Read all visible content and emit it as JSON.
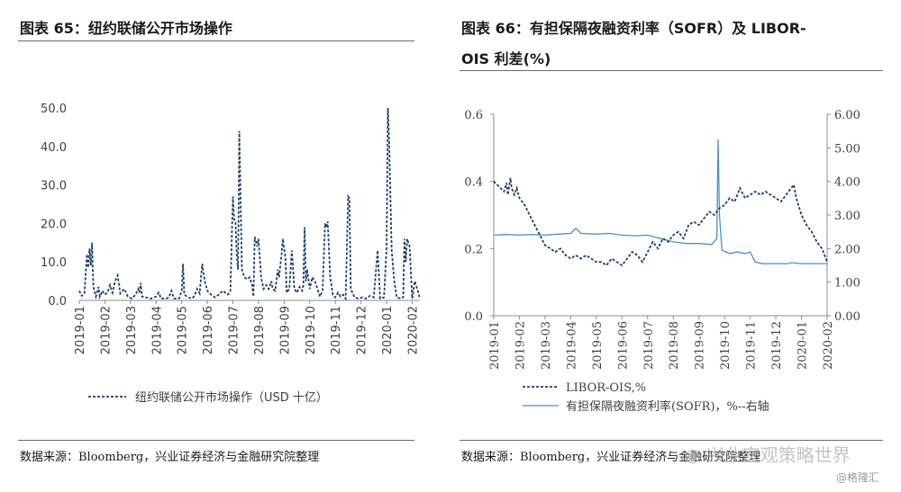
{
  "left_panel": {
    "title": "图表 65：纽约联储公开市场操作",
    "source": "数据来源：Bloomberg，兴业证券经济与金融研究院整理"
  },
  "right_panel": {
    "title_line1": "图表 66：有担保隔夜融资利率（SOFR）及 LIBOR-",
    "title_line2": "OIS 利差(%)",
    "source": "数据来源：Bloomberg，兴业证券经济与金融研究院整理"
  },
  "watermark": {
    "text": "兴业宏观策略世界",
    "credit": "@格隆汇"
  },
  "colors": {
    "dark_series": "#1f3f68",
    "light_series": "#4a90c4",
    "axis": "#8c8c8c"
  },
  "chart_data": [
    {
      "type": "line",
      "title": "图表 65：纽约联储公开市场操作",
      "xlabel": "",
      "ylabel": "",
      "y_ticks": [
        "0.0",
        "10.0",
        "20.0",
        "30.0",
        "40.0",
        "50.0"
      ],
      "x_ticks": [
        "2019-01",
        "2019-02",
        "2019-03",
        "2019-04",
        "2019-05",
        "2019-06",
        "2019-07",
        "2019-08",
        "2019-09",
        "2019-10",
        "2019-11",
        "2019-12",
        "2020-01",
        "2020-02"
      ],
      "ylim": [
        0,
        50
      ],
      "xlim": [
        0,
        13.3
      ],
      "grid": false,
      "legend_position": "bottom",
      "series": [
        {
          "name": "纽约联储公开市场操作（USD 十亿）",
          "style": "dashed",
          "points": [
            [
              0.0,
              2.5
            ],
            [
              0.1,
              1.2
            ],
            [
              0.2,
              1.8
            ],
            [
              0.3,
              12.0
            ],
            [
              0.35,
              8.5
            ],
            [
              0.4,
              13.5
            ],
            [
              0.45,
              9.0
            ],
            [
              0.5,
              15.0
            ],
            [
              0.55,
              3.5
            ],
            [
              0.65,
              1.0
            ],
            [
              0.75,
              3.5
            ],
            [
              0.8,
              1.0
            ],
            [
              0.9,
              2.5
            ],
            [
              1.0,
              1.5
            ],
            [
              1.1,
              2.0
            ],
            [
              1.2,
              4.0
            ],
            [
              1.3,
              2.0
            ],
            [
              1.4,
              5.0
            ],
            [
              1.5,
              6.5
            ],
            [
              1.6,
              1.8
            ],
            [
              1.75,
              3.0
            ],
            [
              1.9,
              1.0
            ],
            [
              2.05,
              0.5
            ],
            [
              2.2,
              1.5
            ],
            [
              2.3,
              3.0
            ],
            [
              2.35,
              2.0
            ],
            [
              2.4,
              4.5
            ],
            [
              2.45,
              1.0
            ],
            [
              2.6,
              0.8
            ],
            [
              2.8,
              0.5
            ],
            [
              3.0,
              1.0
            ],
            [
              3.1,
              2.0
            ],
            [
              3.2,
              0.5
            ],
            [
              3.4,
              0.5
            ],
            [
              3.5,
              0.8
            ],
            [
              3.6,
              2.5
            ],
            [
              3.7,
              0.5
            ],
            [
              3.9,
              0.5
            ],
            [
              4.0,
              2.5
            ],
            [
              4.05,
              9.5
            ],
            [
              4.1,
              1.5
            ],
            [
              4.25,
              0.8
            ],
            [
              4.4,
              0.5
            ],
            [
              4.5,
              1.2
            ],
            [
              4.6,
              3.0
            ],
            [
              4.7,
              1.8
            ],
            [
              4.8,
              9.5
            ],
            [
              4.9,
              5.0
            ],
            [
              5.0,
              2.5
            ],
            [
              5.15,
              1.5
            ],
            [
              5.3,
              0.8
            ],
            [
              5.45,
              1.5
            ],
            [
              5.6,
              2.5
            ],
            [
              5.7,
              2.0
            ],
            [
              5.8,
              1.5
            ],
            [
              5.9,
              2.5
            ],
            [
              6.0,
              27.0
            ],
            [
              6.05,
              21.0
            ],
            [
              6.1,
              20.5
            ],
            [
              6.15,
              12.0
            ],
            [
              6.2,
              8.0
            ],
            [
              6.25,
              44.0
            ],
            [
              6.3,
              25.0
            ],
            [
              6.35,
              8.0
            ],
            [
              6.45,
              6.0
            ],
            [
              6.55,
              5.5
            ],
            [
              6.65,
              6.0
            ],
            [
              6.75,
              4.0
            ],
            [
              6.8,
              1.0
            ],
            [
              6.85,
              16.5
            ],
            [
              6.95,
              14.0
            ],
            [
              7.0,
              16.0
            ],
            [
              7.1,
              6.0
            ],
            [
              7.2,
              3.0
            ],
            [
              7.3,
              4.0
            ],
            [
              7.4,
              3.0
            ],
            [
              7.5,
              5.0
            ],
            [
              7.55,
              3.0
            ],
            [
              7.65,
              2.5
            ],
            [
              7.75,
              8.0
            ],
            [
              7.8,
              6.0
            ],
            [
              7.9,
              12.0
            ],
            [
              7.95,
              16.0
            ],
            [
              8.05,
              11.0
            ],
            [
              8.1,
              2.0
            ],
            [
              8.2,
              3.0
            ],
            [
              8.3,
              13.0
            ],
            [
              8.4,
              3.0
            ],
            [
              8.5,
              2.0
            ],
            [
              8.6,
              3.5
            ],
            [
              8.7,
              2.5
            ],
            [
              8.75,
              4.0
            ],
            [
              8.8,
              19.0
            ],
            [
              8.85,
              5.0
            ],
            [
              8.9,
              8.0
            ],
            [
              9.0,
              3.0
            ],
            [
              9.1,
              6.0
            ],
            [
              9.2,
              5.0
            ],
            [
              9.3,
              3.0
            ],
            [
              9.4,
              1.0
            ],
            [
              9.5,
              2.5
            ],
            [
              9.6,
              20.0
            ],
            [
              9.65,
              19.0
            ],
            [
              9.7,
              20.5
            ],
            [
              9.8,
              6.0
            ],
            [
              9.9,
              1.5
            ],
            [
              10.0,
              0.8
            ],
            [
              10.1,
              2.0
            ],
            [
              10.2,
              1.0
            ],
            [
              10.3,
              1.5
            ],
            [
              10.4,
              0.5
            ],
            [
              10.5,
              27.0
            ],
            [
              10.55,
              26.5
            ],
            [
              10.6,
              3.0
            ],
            [
              10.75,
              0.8
            ],
            [
              10.9,
              0.5
            ],
            [
              11.05,
              0.8
            ],
            [
              11.2,
              0.5
            ],
            [
              11.35,
              1.2
            ],
            [
              11.5,
              0.8
            ],
            [
              11.65,
              13.0
            ],
            [
              11.75,
              0.5
            ],
            [
              11.9,
              0.8
            ],
            [
              12.0,
              14.0
            ],
            [
              12.05,
              50.0
            ],
            [
              12.1,
              41.0
            ],
            [
              12.2,
              13.0
            ],
            [
              12.3,
              5.0
            ],
            [
              12.4,
              0.8
            ],
            [
              12.55,
              0.5
            ],
            [
              12.65,
              0.8
            ],
            [
              12.7,
              16.0
            ],
            [
              12.75,
              10.0
            ],
            [
              12.8,
              16.0
            ],
            [
              12.9,
              14.0
            ],
            [
              13.0,
              0.5
            ],
            [
              13.1,
              5.0
            ],
            [
              13.2,
              3.0
            ],
            [
              13.3,
              0.5
            ]
          ]
        }
      ]
    },
    {
      "type": "line",
      "title": "图表 66：有担保隔夜融资利率（SOFR）及 LIBOR-OIS 利差(%)",
      "xlabel": "",
      "y_left_ticks": [
        "0.0",
        "0.2",
        "0.4",
        "0.6"
      ],
      "y_right_ticks": [
        "0.00",
        "1.00",
        "2.00",
        "3.00",
        "4.00",
        "5.00",
        "6.00"
      ],
      "ylim_left": [
        0,
        0.6
      ],
      "ylim_right": [
        0,
        6
      ],
      "x_ticks": [
        "2019-01",
        "2019-02",
        "2019-03",
        "2019-04",
        "2019-05",
        "2019-06",
        "2019-07",
        "2019-08",
        "2019-09",
        "2019-10",
        "2019-11",
        "2019-12",
        "2020-01",
        "2020-02"
      ],
      "xlim": [
        0,
        13
      ],
      "grid": false,
      "legend_position": "bottom",
      "series": [
        {
          "name": "LIBOR-OIS,%",
          "axis": "left",
          "style": "dashed",
          "points": [
            [
              0.0,
              0.4
            ],
            [
              0.2,
              0.385
            ],
            [
              0.4,
              0.37
            ],
            [
              0.5,
              0.395
            ],
            [
              0.55,
              0.36
            ],
            [
              0.65,
              0.41
            ],
            [
              0.7,
              0.38
            ],
            [
              0.8,
              0.36
            ],
            [
              0.9,
              0.38
            ],
            [
              1.0,
              0.35
            ],
            [
              1.2,
              0.33
            ],
            [
              1.4,
              0.3
            ],
            [
              1.6,
              0.27
            ],
            [
              1.8,
              0.24
            ],
            [
              2.0,
              0.21
            ],
            [
              2.2,
              0.2
            ],
            [
              2.4,
              0.19
            ],
            [
              2.6,
              0.2
            ],
            [
              2.8,
              0.18
            ],
            [
              3.0,
              0.17
            ],
            [
              3.2,
              0.18
            ],
            [
              3.4,
              0.17
            ],
            [
              3.6,
              0.18
            ],
            [
              3.8,
              0.17
            ],
            [
              4.0,
              0.16
            ],
            [
              4.2,
              0.16
            ],
            [
              4.4,
              0.15
            ],
            [
              4.6,
              0.17
            ],
            [
              4.8,
              0.16
            ],
            [
              5.0,
              0.15
            ],
            [
              5.2,
              0.17
            ],
            [
              5.4,
              0.19
            ],
            [
              5.6,
              0.18
            ],
            [
              5.8,
              0.16
            ],
            [
              6.0,
              0.19
            ],
            [
              6.2,
              0.22
            ],
            [
              6.4,
              0.2
            ],
            [
              6.6,
              0.23
            ],
            [
              6.8,
              0.22
            ],
            [
              7.0,
              0.24
            ],
            [
              7.2,
              0.25
            ],
            [
              7.4,
              0.23
            ],
            [
              7.6,
              0.27
            ],
            [
              7.8,
              0.28
            ],
            [
              8.0,
              0.27
            ],
            [
              8.2,
              0.29
            ],
            [
              8.4,
              0.31
            ],
            [
              8.6,
              0.3
            ],
            [
              8.8,
              0.32
            ],
            [
              9.0,
              0.33
            ],
            [
              9.2,
              0.35
            ],
            [
              9.4,
              0.34
            ],
            [
              9.6,
              0.38
            ],
            [
              9.8,
              0.35
            ],
            [
              10.0,
              0.36
            ],
            [
              10.2,
              0.37
            ],
            [
              10.4,
              0.36
            ],
            [
              10.6,
              0.37
            ],
            [
              10.8,
              0.36
            ],
            [
              11.0,
              0.35
            ],
            [
              11.2,
              0.34
            ],
            [
              11.4,
              0.36
            ],
            [
              11.6,
              0.38
            ],
            [
              11.7,
              0.39
            ],
            [
              11.8,
              0.35
            ],
            [
              12.0,
              0.3
            ],
            [
              12.2,
              0.27
            ],
            [
              12.4,
              0.25
            ],
            [
              12.6,
              0.22
            ],
            [
              12.8,
              0.2
            ],
            [
              12.9,
              0.18
            ],
            [
              13.0,
              0.16
            ]
          ]
        },
        {
          "name": "有担保隔夜融资利率(SOFR)，%--右轴",
          "axis": "right",
          "style": "solid",
          "points": [
            [
              0.0,
              2.4
            ],
            [
              0.5,
              2.42
            ],
            [
              1.0,
              2.4
            ],
            [
              1.5,
              2.42
            ],
            [
              2.0,
              2.4
            ],
            [
              2.5,
              2.43
            ],
            [
              3.0,
              2.45
            ],
            [
              3.2,
              2.6
            ],
            [
              3.4,
              2.45
            ],
            [
              4.0,
              2.43
            ],
            [
              4.5,
              2.45
            ],
            [
              5.0,
              2.4
            ],
            [
              5.5,
              2.38
            ],
            [
              6.0,
              2.4
            ],
            [
              6.5,
              2.3
            ],
            [
              7.0,
              2.2
            ],
            [
              7.5,
              2.15
            ],
            [
              8.0,
              2.15
            ],
            [
              8.5,
              2.12
            ],
            [
              8.7,
              2.3
            ],
            [
              8.75,
              5.25
            ],
            [
              8.8,
              3.0
            ],
            [
              8.9,
              1.95
            ],
            [
              9.2,
              1.85
            ],
            [
              9.5,
              1.9
            ],
            [
              9.8,
              1.85
            ],
            [
              10.0,
              1.9
            ],
            [
              10.2,
              1.6
            ],
            [
              10.5,
              1.55
            ],
            [
              11.0,
              1.55
            ],
            [
              11.5,
              1.55
            ],
            [
              11.6,
              1.58
            ],
            [
              12.0,
              1.55
            ],
            [
              12.5,
              1.55
            ],
            [
              13.0,
              1.55
            ]
          ]
        }
      ]
    }
  ]
}
